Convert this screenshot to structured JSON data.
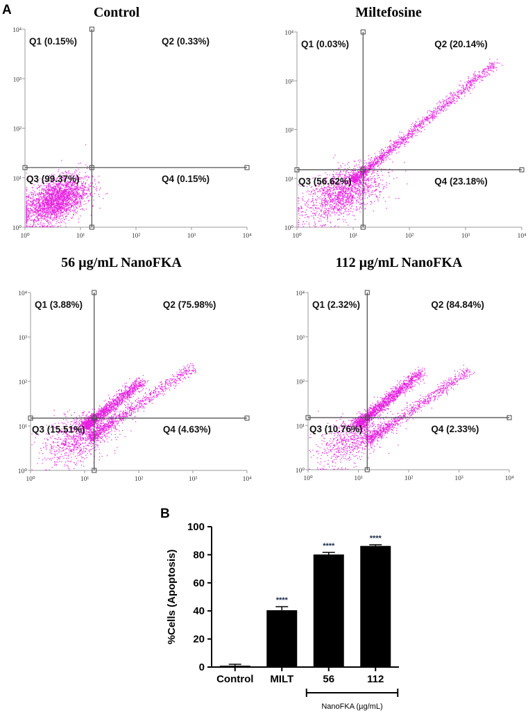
{
  "panel_a_label": "A",
  "panel_b_label": "B",
  "chart_data": [
    {
      "type": "scatter",
      "title": "Control",
      "scale": "log",
      "xlim": [
        1,
        10000
      ],
      "ylim": [
        1,
        10000
      ],
      "x_tick_labels": [
        "10⁰",
        "10¹",
        "10²",
        "10³",
        "10⁴"
      ],
      "y_tick_labels": [
        "10⁰",
        "10¹",
        "10²",
        "10³",
        "10⁴"
      ],
      "quadrants": [
        {
          "id": "Q1",
          "label": "Q1 (0.15%)",
          "percent": 0.15
        },
        {
          "id": "Q2",
          "label": "Q2 (0.33%)",
          "percent": 0.33
        },
        {
          "id": "Q3",
          "label": "Q3 (99.37%)",
          "percent": 99.37
        },
        {
          "id": "Q4",
          "label": "Q4 (0.15%)",
          "percent": 0.15
        }
      ],
      "gate": {
        "x": 16,
        "y": 16
      },
      "point_color": "#e61ee0"
    },
    {
      "type": "scatter",
      "title": "Miltefosine",
      "scale": "log",
      "xlim": [
        1,
        10000
      ],
      "ylim": [
        1,
        10000
      ],
      "x_tick_labels": [
        "10⁰",
        "10¹",
        "10²",
        "10³",
        "10⁴"
      ],
      "y_tick_labels": [
        "10⁰",
        "10¹",
        "10²",
        "10³",
        "10⁴"
      ],
      "quadrants": [
        {
          "id": "Q1",
          "label": "Q1 (0.03%)",
          "percent": 0.03
        },
        {
          "id": "Q2",
          "label": "Q2 (20.14%)",
          "percent": 20.14
        },
        {
          "id": "Q3",
          "label": "Q3 (56.62%)",
          "percent": 56.62
        },
        {
          "id": "Q4",
          "label": "Q4 (23.18%)",
          "percent": 23.18
        }
      ],
      "gate": {
        "x": 15,
        "y": 15
      },
      "point_color": "#e61ee0"
    },
    {
      "type": "scatter",
      "title": "56 µg/mL NanoFKA",
      "scale": "log",
      "xlim": [
        1,
        10000
      ],
      "ylim": [
        1,
        10000
      ],
      "x_tick_labels": [
        "10⁰",
        "10¹",
        "10²",
        "10³",
        "10⁴"
      ],
      "y_tick_labels": [
        "10⁰",
        "10¹",
        "10²",
        "10³",
        "10⁴"
      ],
      "quadrants": [
        {
          "id": "Q1",
          "label": "Q1 (3.88%)",
          "percent": 3.88
        },
        {
          "id": "Q2",
          "label": "Q2 (75.98%)",
          "percent": 75.98
        },
        {
          "id": "Q3",
          "label": "Q3 (15.51%)",
          "percent": 15.51
        },
        {
          "id": "Q4",
          "label": "Q4 (4.63%)",
          "percent": 4.63
        }
      ],
      "gate": {
        "x": 15,
        "y": 15
      },
      "point_color": "#e61ee0"
    },
    {
      "type": "scatter",
      "title": "112 µg/mL NanoFKA",
      "scale": "log",
      "xlim": [
        1,
        10000
      ],
      "ylim": [
        1,
        10000
      ],
      "x_tick_labels": [
        "10⁰",
        "10¹",
        "10²",
        "10³",
        "10⁴"
      ],
      "y_tick_labels": [
        "10⁰",
        "10¹",
        "10²",
        "10³",
        "10⁴"
      ],
      "quadrants": [
        {
          "id": "Q1",
          "label": "Q1 (2.32%)",
          "percent": 2.32
        },
        {
          "id": "Q2",
          "label": "Q2 (84.84%)",
          "percent": 84.84
        },
        {
          "id": "Q3",
          "label": "Q3 (10.76%)",
          "percent": 10.76
        },
        {
          "id": "Q4",
          "label": "Q4 (2.33%)",
          "percent": 2.33
        }
      ],
      "gate": {
        "x": 15,
        "y": 15
      },
      "point_color": "#e61ee0"
    },
    {
      "type": "bar",
      "categories": [
        "Control",
        "MILT",
        "56",
        "112"
      ],
      "values": [
        1,
        40.5,
        80.2,
        86.3
      ],
      "errors": [
        1,
        2.5,
        1.5,
        0.8
      ],
      "significance": [
        "",
        "****",
        "****",
        "****"
      ],
      "ylabel": "%Cells (Apoptosis)",
      "ylim": [
        0,
        100
      ],
      "yticks": [
        0,
        20,
        40,
        60,
        80,
        100
      ],
      "group_label": "NanoFKA (µg/mL)",
      "bar_color": "#000000"
    }
  ]
}
